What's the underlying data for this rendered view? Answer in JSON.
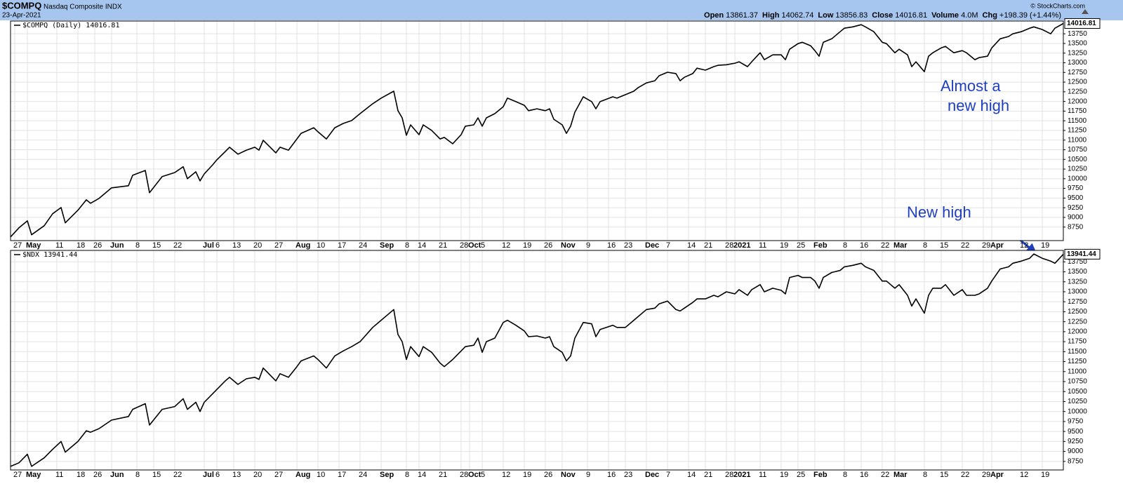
{
  "header": {
    "symbol": "$COMPQ",
    "name": "Nasdaq Composite INDX",
    "date": "23-Apr-2021",
    "quote": [
      {
        "label": "Open",
        "value": "13861.37"
      },
      {
        "label": "High",
        "value": "14062.74"
      },
      {
        "label": "Low",
        "value": "13856.83"
      },
      {
        "label": "Close",
        "value": "14016.81"
      },
      {
        "label": "Volume",
        "value": "4.0M"
      },
      {
        "label": "Chg",
        "value": "+198.39 (+1.44%)"
      }
    ],
    "credit": "© StockCharts.com"
  },
  "chart_data": [
    {
      "type": "line",
      "x": [
        0,
        2,
        4,
        5,
        8,
        10,
        12,
        13,
        16,
        18,
        19,
        21,
        24,
        28,
        29,
        32,
        33,
        36,
        39,
        41,
        42,
        44,
        45,
        46,
        48,
        49,
        51,
        52,
        54,
        56,
        58,
        59,
        60,
        63,
        64,
        66,
        68,
        69,
        72,
        73,
        75,
        77,
        79,
        81,
        83,
        86,
        88,
        91,
        92,
        93,
        94,
        95,
        97,
        98,
        100,
        102,
        103,
        105,
        107,
        108,
        110,
        111,
        112,
        113,
        115,
        117,
        118,
        120,
        122,
        123,
        125,
        127,
        128,
        129,
        131,
        132,
        133,
        134,
        136,
        138,
        139,
        140,
        143,
        144,
        146,
        148,
        149,
        151,
        153,
        154,
        156,
        158,
        159,
        160,
        162,
        163,
        165,
        167,
        168,
        170,
        172,
        173,
        175,
        176,
        178,
        179,
        181,
        183,
        184,
        185,
        187,
        188,
        190,
        191,
        192,
        193,
        195,
        197,
        198,
        200,
        202,
        203,
        205,
        207,
        208,
        210,
        211,
        213,
        214,
        215,
        217,
        218,
        219,
        221,
        222,
        224,
        226,
        227,
        229,
        230,
        232,
        233,
        235,
        237,
        238,
        240,
        242,
        243,
        245,
        247,
        248,
        250
      ],
      "series": [
        {
          "name": "$COMPQ (Daily)",
          "color": "#000000",
          "values": [
            8495,
            8730,
            8910,
            8550,
            8785,
            9095,
            9255,
            8860,
            9185,
            9455,
            9365,
            9490,
            9765,
            9820,
            10090,
            10215,
            9640,
            10055,
            10160,
            10310,
            10000,
            10180,
            9945,
            10125,
            10360,
            10490,
            10705,
            10815,
            10635,
            10740,
            10815,
            10740,
            10995,
            10670,
            10815,
            10740,
            11030,
            11175,
            11320,
            11215,
            11030,
            11320,
            11430,
            11505,
            11685,
            11940,
            12085,
            12265,
            11760,
            11575,
            11125,
            11395,
            11140,
            11395,
            11250,
            11030,
            11070,
            10905,
            11140,
            11360,
            11395,
            11575,
            11360,
            11575,
            11685,
            11865,
            12085,
            11995,
            11900,
            11760,
            11810,
            11760,
            11810,
            11540,
            11395,
            11175,
            11360,
            11720,
            12120,
            11995,
            11810,
            11995,
            12120,
            12085,
            12175,
            12265,
            12355,
            12480,
            12535,
            12665,
            12755,
            12720,
            12535,
            12625,
            12720,
            12860,
            12810,
            12900,
            12935,
            12950,
            12990,
            13025,
            12900,
            13025,
            13260,
            13080,
            13205,
            13205,
            13080,
            13350,
            13495,
            13530,
            13440,
            13315,
            13170,
            13530,
            13620,
            13805,
            13895,
            13930,
            13985,
            13930,
            13805,
            13530,
            13495,
            13260,
            13350,
            13205,
            12900,
            13025,
            12770,
            13170,
            13260,
            13385,
            13425,
            13260,
            13315,
            13260,
            13080,
            13135,
            13170,
            13385,
            13620,
            13680,
            13750,
            13805,
            13895,
            13930,
            13860,
            13750,
            13895,
            14016.81
          ]
        }
      ],
      "xlim": [
        0,
        250
      ],
      "ylim": [
        8400,
        14080
      ],
      "xticks": [
        {
          "value": 1,
          "label": "27"
        },
        {
          "value": 4,
          "label": "May"
        },
        {
          "value": 11,
          "label": "11"
        },
        {
          "value": 16,
          "label": "18"
        },
        {
          "value": 20,
          "label": "26"
        },
        {
          "value": 24,
          "label": "Jun"
        },
        {
          "value": 30,
          "label": "8"
        },
        {
          "value": 34,
          "label": "15"
        },
        {
          "value": 39,
          "label": "22"
        },
        {
          "value": 46,
          "label": "Jul"
        },
        {
          "value": 49,
          "label": "6"
        },
        {
          "value": 53,
          "label": "13"
        },
        {
          "value": 58,
          "label": "20"
        },
        {
          "value": 63,
          "label": "27"
        },
        {
          "value": 68,
          "label": "Aug"
        },
        {
          "value": 73,
          "label": "10"
        },
        {
          "value": 78,
          "label": "17"
        },
        {
          "value": 83,
          "label": "24"
        },
        {
          "value": 88,
          "label": "Sep"
        },
        {
          "value": 94,
          "label": "8"
        },
        {
          "value": 97,
          "label": "14"
        },
        {
          "value": 102,
          "label": "21"
        },
        {
          "value": 107,
          "label": "28"
        },
        {
          "value": 109,
          "label": "Oct"
        },
        {
          "value": 112,
          "label": "5"
        },
        {
          "value": 117,
          "label": "12"
        },
        {
          "value": 122,
          "label": "19"
        },
        {
          "value": 127,
          "label": "26"
        },
        {
          "value": 131,
          "label": "Nov"
        },
        {
          "value": 137,
          "label": "9"
        },
        {
          "value": 142,
          "label": "16"
        },
        {
          "value": 146,
          "label": "23"
        },
        {
          "value": 151,
          "label": "Dec"
        },
        {
          "value": 156,
          "label": "7"
        },
        {
          "value": 161,
          "label": "14"
        },
        {
          "value": 165,
          "label": "21"
        },
        {
          "value": 170,
          "label": "28"
        },
        {
          "value": 172,
          "label": "2021"
        },
        {
          "value": 178,
          "label": "11"
        },
        {
          "value": 183,
          "label": "19"
        },
        {
          "value": 187,
          "label": "25"
        },
        {
          "value": 191,
          "label": "Feb"
        },
        {
          "value": 198,
          "label": "8"
        },
        {
          "value": 202,
          "label": "16"
        },
        {
          "value": 207,
          "label": "22"
        },
        {
          "value": 210,
          "label": "Mar"
        },
        {
          "value": 217,
          "label": "8"
        },
        {
          "value": 221,
          "label": "15"
        },
        {
          "value": 226,
          "label": "22"
        },
        {
          "value": 231,
          "label": "29"
        },
        {
          "value": 233,
          "label": "Apr"
        },
        {
          "value": 240,
          "label": "12"
        },
        {
          "value": 245,
          "label": "19"
        }
      ],
      "yticks": [
        8750,
        9000,
        9250,
        9500,
        9750,
        10000,
        10250,
        10500,
        10750,
        11000,
        11250,
        11500,
        11750,
        12000,
        12250,
        12500,
        12750,
        13000,
        13250,
        13500,
        13750
      ],
      "grid": true,
      "annotations": [
        {
          "lines": [
            "Almost a",
            "new high"
          ],
          "color": "#1f3fbf"
        }
      ]
    },
    {
      "type": "line",
      "x": [
        0,
        2,
        4,
        5,
        8,
        10,
        12,
        13,
        16,
        18,
        19,
        21,
        24,
        28,
        29,
        32,
        33,
        36,
        39,
        41,
        42,
        44,
        45,
        46,
        48,
        49,
        51,
        52,
        54,
        56,
        58,
        59,
        60,
        63,
        64,
        66,
        68,
        69,
        72,
        73,
        75,
        77,
        79,
        81,
        83,
        86,
        88,
        91,
        92,
        93,
        94,
        95,
        97,
        98,
        100,
        102,
        103,
        105,
        107,
        108,
        110,
        111,
        112,
        113,
        115,
        117,
        118,
        120,
        122,
        123,
        125,
        127,
        128,
        129,
        131,
        132,
        133,
        134,
        136,
        138,
        139,
        140,
        143,
        144,
        146,
        148,
        149,
        151,
        153,
        154,
        156,
        158,
        159,
        160,
        162,
        163,
        165,
        167,
        168,
        170,
        172,
        173,
        175,
        176,
        178,
        179,
        181,
        183,
        184,
        185,
        187,
        188,
        190,
        191,
        192,
        193,
        195,
        197,
        198,
        200,
        202,
        203,
        205,
        207,
        208,
        210,
        211,
        213,
        214,
        215,
        217,
        218,
        219,
        221,
        222,
        224,
        226,
        227,
        229,
        230,
        232,
        233,
        235,
        237,
        238,
        240,
        242,
        243,
        245,
        247,
        248,
        250
      ],
      "series": [
        {
          "name": "$NDX",
          "color": "#000000",
          "values": [
            8625,
            8715,
            8930,
            8625,
            8840,
            9053,
            9250,
            8982,
            9250,
            9518,
            9482,
            9571,
            9786,
            9875,
            10054,
            10196,
            9661,
            10054,
            10125,
            10321,
            10054,
            10232,
            9999,
            10232,
            10446,
            10554,
            10768,
            10857,
            10679,
            10821,
            10857,
            10804,
            11089,
            10768,
            10946,
            10857,
            11125,
            11268,
            11393,
            11304,
            11089,
            11393,
            11518,
            11625,
            11750,
            12107,
            12286,
            12554,
            11929,
            11750,
            11304,
            11625,
            11375,
            11625,
            11482,
            11214,
            11125,
            11304,
            11518,
            11625,
            11661,
            11839,
            11482,
            11750,
            11839,
            12232,
            12286,
            12161,
            12018,
            11875,
            11893,
            11839,
            11875,
            11625,
            11482,
            11268,
            11393,
            11839,
            12232,
            12196,
            11875,
            12054,
            12161,
            12107,
            12107,
            12286,
            12375,
            12554,
            12589,
            12696,
            12768,
            12554,
            12518,
            12589,
            12732,
            12821,
            12821,
            12911,
            12875,
            13000,
            12946,
            13054,
            12911,
            13054,
            13179,
            13000,
            13089,
            13036,
            12946,
            13357,
            13411,
            13357,
            13357,
            13268,
            13089,
            13357,
            13482,
            13536,
            13625,
            13661,
            13714,
            13625,
            13536,
            13268,
            13268,
            13089,
            13179,
            12911,
            12643,
            12821,
            12464,
            12911,
            13089,
            13089,
            13179,
            12911,
            13054,
            12911,
            12911,
            12946,
            13089,
            13268,
            13571,
            13625,
            13714,
            13768,
            13839,
            13946,
            13839,
            13768,
            13714,
            13941.44
          ]
        }
      ],
      "xlim": [
        0,
        250
      ],
      "ylim": [
        8536,
        14036
      ],
      "xticks": [
        {
          "value": 1,
          "label": "27"
        },
        {
          "value": 4,
          "label": "May"
        },
        {
          "value": 11,
          "label": "11"
        },
        {
          "value": 16,
          "label": "18"
        },
        {
          "value": 20,
          "label": "26"
        },
        {
          "value": 24,
          "label": "Jun"
        },
        {
          "value": 30,
          "label": "8"
        },
        {
          "value": 34,
          "label": "15"
        },
        {
          "value": 39,
          "label": "22"
        },
        {
          "value": 46,
          "label": "Jul"
        },
        {
          "value": 49,
          "label": "6"
        },
        {
          "value": 53,
          "label": "13"
        },
        {
          "value": 58,
          "label": "20"
        },
        {
          "value": 63,
          "label": "27"
        },
        {
          "value": 68,
          "label": "Aug"
        },
        {
          "value": 73,
          "label": "10"
        },
        {
          "value": 78,
          "label": "17"
        },
        {
          "value": 83,
          "label": "24"
        },
        {
          "value": 88,
          "label": "Sep"
        },
        {
          "value": 94,
          "label": "8"
        },
        {
          "value": 97,
          "label": "14"
        },
        {
          "value": 102,
          "label": "21"
        },
        {
          "value": 107,
          "label": "28"
        },
        {
          "value": 109,
          "label": "Oct"
        },
        {
          "value": 112,
          "label": "5"
        },
        {
          "value": 117,
          "label": "12"
        },
        {
          "value": 122,
          "label": "19"
        },
        {
          "value": 127,
          "label": "26"
        },
        {
          "value": 131,
          "label": "Nov"
        },
        {
          "value": 137,
          "label": "9"
        },
        {
          "value": 142,
          "label": "16"
        },
        {
          "value": 146,
          "label": "23"
        },
        {
          "value": 151,
          "label": "Dec"
        },
        {
          "value": 156,
          "label": "7"
        },
        {
          "value": 161,
          "label": "14"
        },
        {
          "value": 165,
          "label": "21"
        },
        {
          "value": 170,
          "label": "28"
        },
        {
          "value": 172,
          "label": "2021"
        },
        {
          "value": 178,
          "label": "11"
        },
        {
          "value": 183,
          "label": "19"
        },
        {
          "value": 187,
          "label": "25"
        },
        {
          "value": 191,
          "label": "Feb"
        },
        {
          "value": 198,
          "label": "8"
        },
        {
          "value": 202,
          "label": "16"
        },
        {
          "value": 207,
          "label": "22"
        },
        {
          "value": 210,
          "label": "Mar"
        },
        {
          "value": 217,
          "label": "8"
        },
        {
          "value": 221,
          "label": "15"
        },
        {
          "value": 226,
          "label": "22"
        },
        {
          "value": 231,
          "label": "29"
        },
        {
          "value": 233,
          "label": "Apr"
        },
        {
          "value": 240,
          "label": "12"
        },
        {
          "value": 245,
          "label": "19"
        }
      ],
      "yticks": [
        8750,
        9000,
        9250,
        9500,
        9750,
        10000,
        10250,
        10500,
        10750,
        11000,
        11250,
        11500,
        11750,
        12000,
        12250,
        12500,
        12750,
        13000,
        13250,
        13500,
        13750
      ],
      "grid": true,
      "annotations": [
        {
          "lines": [
            "New high"
          ],
          "color": "#1f3fbf"
        }
      ]
    }
  ]
}
